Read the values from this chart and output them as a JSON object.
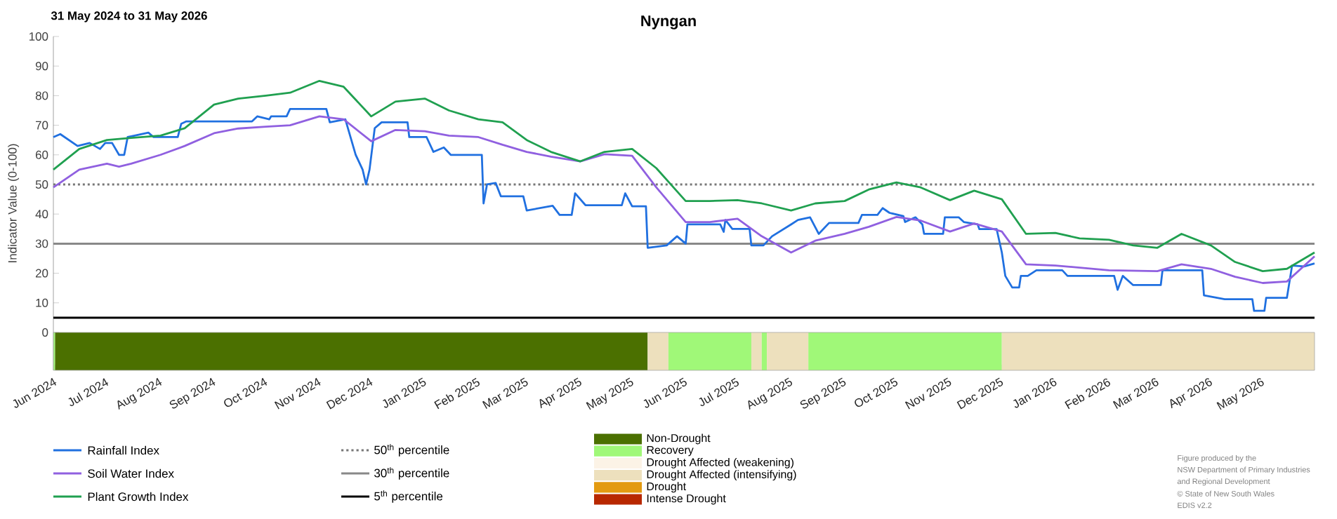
{
  "chart_data": [
    {
      "type": "line",
      "title": "Nyngan",
      "subtitle": "31 May 2024 to 31 May 2026",
      "ylabel": "Indicator Value (0-100)",
      "xlim": [
        "2024-05-31",
        "2026-05-31"
      ],
      "ylim": [
        -12.8,
        100
      ],
      "yticks": [
        0,
        10,
        20,
        30,
        40,
        50,
        60,
        70,
        80,
        90,
        100
      ],
      "legend": "bottom",
      "xticks": [
        {
          "value": "2024-06-01",
          "label": "Jun 2024"
        },
        {
          "value": "2024-07-01",
          "label": "Jul 2024"
        },
        {
          "value": "2024-08-01",
          "label": "Aug 2024"
        },
        {
          "value": "2024-09-01",
          "label": "Sep 2024"
        },
        {
          "value": "2024-10-01",
          "label": "Oct 2024"
        },
        {
          "value": "2024-11-01",
          "label": "Nov 2024"
        },
        {
          "value": "2024-12-01",
          "label": "Dec 2024"
        },
        {
          "value": "2025-01-01",
          "label": "Jan 2025"
        },
        {
          "value": "2025-02-01",
          "label": "Feb 2025"
        },
        {
          "value": "2025-03-01",
          "label": "Mar 2025"
        },
        {
          "value": "2025-04-01",
          "label": "Apr 2025"
        },
        {
          "value": "2025-05-01",
          "label": "May 2025"
        },
        {
          "value": "2025-06-01",
          "label": "Jun 2025"
        },
        {
          "value": "2025-07-01",
          "label": "Jul 2025"
        },
        {
          "value": "2025-08-01",
          "label": "Aug 2025"
        },
        {
          "value": "2025-09-01",
          "label": "Sep 2025"
        },
        {
          "value": "2025-10-01",
          "label": "Oct 2025"
        },
        {
          "value": "2025-11-01",
          "label": "Nov 2025"
        },
        {
          "value": "2025-12-01",
          "label": "Dec 2025"
        },
        {
          "value": "2026-01-01",
          "label": "Jan 2026"
        },
        {
          "value": "2026-02-01",
          "label": "Feb 2026"
        },
        {
          "value": "2026-03-01",
          "label": "Mar 2026"
        },
        {
          "value": "2026-04-01",
          "label": "Apr 2026"
        },
        {
          "value": "2026-05-01",
          "label": "May 2026"
        }
      ],
      "series": [
        {
          "name": "Rainfall Index",
          "color": "#2070e0",
          "type": "line",
          "x": [
            "2024-05-31",
            "2024-06-04",
            "2024-06-14",
            "2024-06-21",
            "2024-06-27",
            "2024-06-30",
            "2024-07-04",
            "2024-07-08",
            "2024-07-11",
            "2024-07-13",
            "2024-07-17",
            "2024-07-25",
            "2024-07-28",
            "2024-08-11",
            "2024-08-13",
            "2024-08-16",
            "2024-09-23",
            "2024-09-26",
            "2024-10-03",
            "2024-10-04",
            "2024-10-13",
            "2024-10-15",
            "2024-11-05",
            "2024-11-07",
            "2024-11-16",
            "2024-11-18",
            "2024-11-22",
            "2024-11-26",
            "2024-11-28",
            "2024-11-30",
            "2024-12-03",
            "2024-12-07",
            "2024-12-22",
            "2024-12-23",
            "2025-01-02",
            "2025-01-06",
            "2025-01-12",
            "2025-01-16",
            "2025-02-03",
            "2025-02-04",
            "2025-02-06",
            "2025-02-11",
            "2025-02-14",
            "2025-02-27",
            "2025-03-01",
            "2025-03-16",
            "2025-03-20",
            "2025-03-27",
            "2025-03-29",
            "2025-04-04",
            "2025-04-25",
            "2025-04-27",
            "2025-05-01",
            "2025-05-09",
            "2025-05-10",
            "2025-05-21",
            "2025-05-27",
            "2025-06-01",
            "2025-06-02",
            "2025-06-21",
            "2025-06-23",
            "2025-06-24",
            "2025-06-28",
            "2025-07-08",
            "2025-07-09",
            "2025-07-16",
            "2025-07-21",
            "2025-08-01",
            "2025-08-05",
            "2025-08-12",
            "2025-08-17",
            "2025-08-23",
            "2025-09-09",
            "2025-09-11",
            "2025-09-20",
            "2025-09-23",
            "2025-09-27",
            "2025-10-05",
            "2025-10-06",
            "2025-10-12",
            "2025-10-16",
            "2025-10-17",
            "2025-10-28",
            "2025-10-29",
            "2025-11-06",
            "2025-11-09",
            "2025-11-17",
            "2025-11-18",
            "2025-11-28",
            "2025-12-01",
            "2025-12-03",
            "2025-12-07",
            "2025-12-11",
            "2025-12-12",
            "2025-12-16",
            "2025-12-21",
            "2026-01-05",
            "2026-01-08",
            "2026-02-04",
            "2026-02-06",
            "2026-02-09",
            "2026-02-15",
            "2026-03-03",
            "2026-03-04",
            "2026-03-27",
            "2026-03-28",
            "2026-04-09",
            "2026-04-25",
            "2026-04-26",
            "2026-05-02",
            "2026-05-03",
            "2026-05-15",
            "2026-05-18",
            "2026-05-25",
            "2026-05-31"
          ],
          "values": [
            66,
            67,
            63,
            64,
            62,
            64,
            64,
            60,
            60,
            66,
            66.5,
            67.5,
            66,
            66,
            70.5,
            71.3,
            71.3,
            73,
            72,
            73,
            73,
            75.5,
            75.5,
            71,
            72,
            68,
            60,
            55,
            50,
            55,
            69,
            71,
            71,
            66,
            66,
            61,
            62.5,
            60,
            60,
            43.6,
            50,
            50.5,
            46,
            46,
            41.2,
            42.8,
            39.7,
            39.7,
            47,
            43,
            43,
            47,
            42.6,
            42.6,
            28.6,
            29.4,
            32.5,
            30,
            36.5,
            36.5,
            34,
            38,
            35,
            35,
            29.4,
            29.4,
            32.5,
            36.5,
            38,
            38.9,
            33.3,
            37,
            37,
            39.7,
            39.7,
            42,
            40.4,
            39.3,
            37.3,
            38.9,
            36.5,
            33.3,
            33.3,
            38.9,
            38.9,
            37.3,
            36.5,
            34.9,
            34.9,
            27,
            19.1,
            15.2,
            15.2,
            19.1,
            19.1,
            21,
            21,
            19.1,
            19.1,
            14.4,
            19.1,
            16,
            16,
            21,
            21,
            12.5,
            11.2,
            11.2,
            7.3,
            7.3,
            11.7,
            11.7,
            22.6,
            22.3,
            23.3
          ]
        },
        {
          "name": "Soil Water Index",
          "color": "#9060e0",
          "type": "line",
          "x": [
            "2024-05-31",
            "2024-06-15",
            "2024-07-01",
            "2024-07-08",
            "2024-07-15",
            "2024-08-01",
            "2024-08-15",
            "2024-09-01",
            "2024-09-15",
            "2024-10-01",
            "2024-10-15",
            "2024-11-01",
            "2024-11-15",
            "2024-12-01",
            "2024-12-15",
            "2025-01-01",
            "2025-01-15",
            "2025-02-01",
            "2025-02-15",
            "2025-03-01",
            "2025-03-15",
            "2025-04-01",
            "2025-04-15",
            "2025-05-01",
            "2025-05-15",
            "2025-06-01",
            "2025-06-15",
            "2025-07-01",
            "2025-07-15",
            "2025-08-01",
            "2025-08-15",
            "2025-09-01",
            "2025-09-15",
            "2025-10-01",
            "2025-10-15",
            "2025-11-01",
            "2025-11-15",
            "2025-12-01",
            "2025-12-15",
            "2026-01-01",
            "2026-02-01",
            "2026-03-01",
            "2026-03-15",
            "2026-04-01",
            "2026-04-15",
            "2026-05-01",
            "2026-05-15",
            "2026-05-31"
          ],
          "values": [
            49,
            55,
            57,
            56,
            57,
            60,
            63,
            67.3,
            68.9,
            69.5,
            70,
            73,
            72,
            64.6,
            68.4,
            68,
            66.5,
            66,
            63.4,
            61,
            59.4,
            57.8,
            60.2,
            59.7,
            49,
            37.3,
            37.3,
            38.4,
            32.5,
            27,
            31,
            33.3,
            35.7,
            39,
            37.8,
            34.1,
            36.8,
            34.1,
            23,
            22.6,
            21,
            20.7,
            23,
            21.5,
            18.8,
            16.7,
            17.2,
            25.7
          ]
        },
        {
          "name": "Plant Growth Index",
          "color": "#20a050",
          "type": "line",
          "x": [
            "2024-05-31",
            "2024-06-15",
            "2024-07-01",
            "2024-07-15",
            "2024-08-01",
            "2024-08-15",
            "2024-09-01",
            "2024-09-15",
            "2024-10-01",
            "2024-10-15",
            "2024-11-01",
            "2024-11-15",
            "2024-12-01",
            "2024-12-15",
            "2025-01-01",
            "2025-01-15",
            "2025-02-01",
            "2025-02-15",
            "2025-03-01",
            "2025-03-15",
            "2025-04-01",
            "2025-04-15",
            "2025-05-01",
            "2025-05-15",
            "2025-06-01",
            "2025-06-15",
            "2025-07-01",
            "2025-07-15",
            "2025-08-01",
            "2025-08-15",
            "2025-09-01",
            "2025-09-15",
            "2025-10-01",
            "2025-10-15",
            "2025-11-01",
            "2025-11-15",
            "2025-12-01",
            "2025-12-15",
            "2026-01-01",
            "2026-01-15",
            "2026-02-01",
            "2026-02-15",
            "2026-03-01",
            "2026-03-15",
            "2026-04-01",
            "2026-04-15",
            "2026-05-01",
            "2026-05-15",
            "2026-05-31"
          ],
          "values": [
            55,
            62,
            65,
            65.7,
            66.5,
            69,
            77,
            79,
            80,
            81,
            85,
            83,
            73,
            78,
            79,
            75,
            72,
            71,
            65,
            61,
            57.8,
            61,
            62,
            55.5,
            44.4,
            44.4,
            44.7,
            43.6,
            41.2,
            43.6,
            44.4,
            48.3,
            50.7,
            49,
            44.7,
            47.9,
            45,
            33.3,
            33.6,
            31.8,
            31.3,
            29.4,
            28.6,
            33.3,
            29.4,
            23.8,
            20.7,
            21.5,
            27
          ]
        }
      ],
      "ref_lines": [
        {
          "axis": "y",
          "value": 50,
          "label": "50$^{th}$ percentile",
          "color": "#777777",
          "line_style": "dotted"
        },
        {
          "axis": "y",
          "value": 30,
          "label": "30$^{th}$ percentile",
          "color": "#888888",
          "line_style": "solid"
        },
        {
          "axis": "y",
          "value": 5,
          "label": "5$^{th}$ percentile",
          "color": "#000000",
          "line_style": "solid"
        }
      ],
      "bands": [
        {
          "axis": "x",
          "from": "2024-05-31",
          "to": "2024-06-01",
          "color": "#a0f878"
        },
        {
          "axis": "x",
          "from": "2024-06-01",
          "to": "2025-05-10",
          "color": "#4b7000"
        },
        {
          "axis": "x",
          "from": "2025-05-10",
          "to": "2025-05-22",
          "color": "#ede0bd"
        },
        {
          "axis": "x",
          "from": "2025-05-22",
          "to": "2025-07-09",
          "color": "#a0f878"
        },
        {
          "axis": "x",
          "from": "2025-07-09",
          "to": "2025-07-15",
          "color": "#ede0bd"
        },
        {
          "axis": "x",
          "from": "2025-07-15",
          "to": "2025-07-18",
          "color": "#a0f878"
        },
        {
          "axis": "x",
          "from": "2025-07-18",
          "to": "2025-08-11",
          "color": "#ede0bd"
        },
        {
          "axis": "x",
          "from": "2025-08-11",
          "to": "2025-12-01",
          "color": "#a0f878"
        },
        {
          "axis": "x",
          "from": "2025-12-01",
          "to": "2026-05-31",
          "color": "#ede0bd"
        }
      ],
      "annotations": [
        "Figure produced by the",
        "NSW Department of Primary Industries",
        "and Regional Development",
        "© State of New South Wales",
        "EDIS v2.2"
      ]
    },
    {
      "type": "other",
      "annotations": [
        "Non-Drought",
        "Recovery",
        "Drought Affected (weakening)",
        "Drought Affected (intensifying)",
        "Drought",
        "Intense Drought"
      ],
      "colors": [
        "#4b7000",
        "#a0f878",
        "#fcf3e6",
        "#ede0bd",
        "#e39a10",
        "#b82800"
      ]
    }
  ]
}
